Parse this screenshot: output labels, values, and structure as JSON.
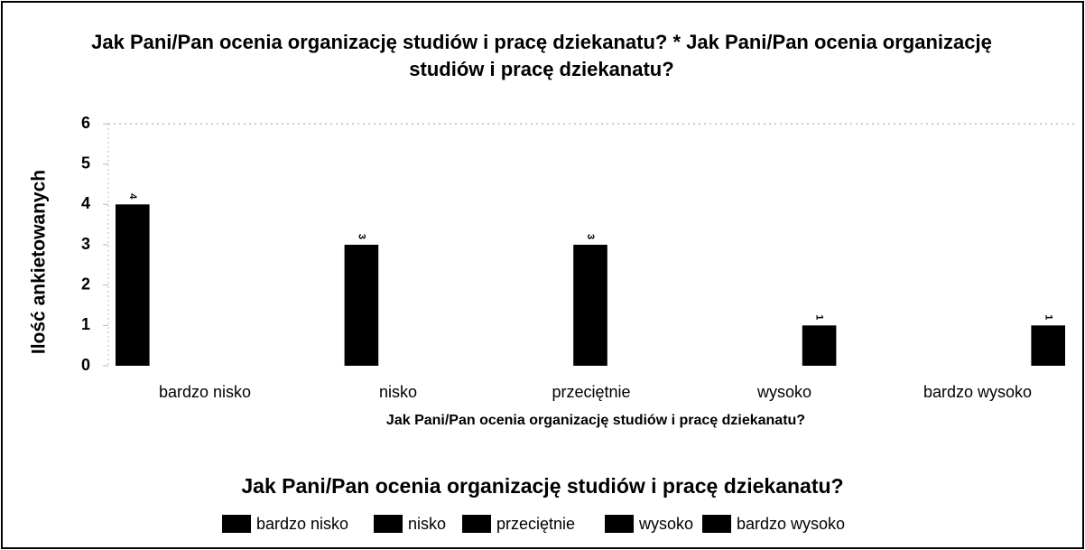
{
  "chart_data": {
    "type": "bar",
    "title": "Jak Pani/Pan ocenia organizację studiów i pracę dziekanatu? * Jak Pani/Pan ocenia organizację studiów i pracę dziekanatu?",
    "xlabel": "Jak Pani/Pan ocenia organizację studiów i pracę dziekanatu?",
    "ylabel": "Ilość ankietowanych",
    "legend_title": "Jak Pani/Pan ocenia organizację studiów i pracę dziekanatu?",
    "categories": [
      "bardzo nisko",
      "nisko",
      "przeciętnie",
      "wysoko",
      "bardzo wysoko"
    ],
    "series": [
      {
        "name": "bardzo nisko",
        "color": "#000000",
        "values": [
          4,
          null,
          null,
          null,
          null
        ]
      },
      {
        "name": "nisko",
        "color": "#000000",
        "values": [
          null,
          3,
          null,
          null,
          null
        ]
      },
      {
        "name": "przeciętnie",
        "color": "#000000",
        "values": [
          null,
          null,
          3,
          null,
          null
        ]
      },
      {
        "name": "wysoko",
        "color": "#000000",
        "values": [
          null,
          null,
          null,
          1,
          null
        ]
      },
      {
        "name": "bardzo wysoko",
        "color": "#000000",
        "values": [
          null,
          null,
          null,
          null,
          1
        ]
      }
    ],
    "ylim": [
      0,
      6
    ],
    "yticks": [
      0,
      1,
      2,
      3,
      4,
      5,
      6
    ],
    "legend": "bottom"
  }
}
